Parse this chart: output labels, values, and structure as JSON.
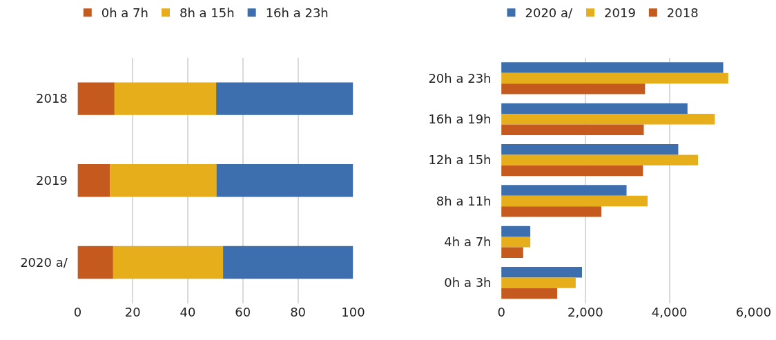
{
  "chart_data": [
    {
      "type": "bar",
      "orientation": "horizontal",
      "stacked": true,
      "categories": [
        "2018",
        "2019",
        "2020 a/"
      ],
      "series": [
        {
          "name": "0h a 7h",
          "color": "#c55a1e",
          "values": [
            13.4,
            11.7,
            12.9
          ]
        },
        {
          "name": "8h a 15h",
          "color": "#e5ae1a",
          "values": [
            36.9,
            38.7,
            39.9
          ]
        },
        {
          "name": "16h a 23h",
          "color": "#3d6fae",
          "values": [
            49.7,
            49.6,
            47.2
          ]
        }
      ],
      "xlim": [
        0,
        100
      ],
      "xticks": [
        0,
        20,
        40,
        60,
        80,
        100
      ],
      "grid": "x",
      "legend": "top left"
    },
    {
      "type": "bar",
      "orientation": "horizontal",
      "categories": [
        "20h a 23h",
        "16h a 19h",
        "12h a 15h",
        "8h a 11h",
        "4h a 7h",
        "0h a 3h"
      ],
      "series": [
        {
          "name": "2020 a/",
          "color": "#3d6fae",
          "values": [
            5280,
            4430,
            4210,
            2980,
            690,
            1920
          ]
        },
        {
          "name": "2019",
          "color": "#e5ae1a",
          "values": [
            5400,
            5080,
            4680,
            3480,
            690,
            1770
          ]
        },
        {
          "name": "2018",
          "color": "#c55a1e",
          "values": [
            3420,
            3390,
            3370,
            2380,
            520,
            1330
          ]
        }
      ],
      "xlim": [
        0,
        6000
      ],
      "xticks": [
        0,
        {
          "value": 2000,
          "label": "2,000"
        },
        {
          "value": 4000,
          "label": "4,000"
        },
        {
          "value": 6000,
          "label": "6,000"
        }
      ],
      "grid": "x",
      "legend": "top left"
    }
  ]
}
